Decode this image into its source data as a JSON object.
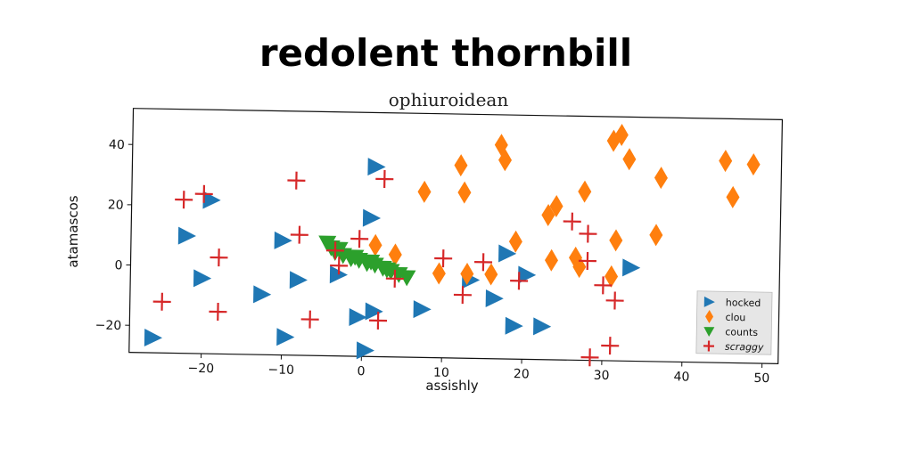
{
  "chart_data": {
    "type": "scatter",
    "title": "redolent thornbill",
    "subtitle": "ophiuroidean",
    "xlabel": "assishly",
    "ylabel": "atamascos",
    "xlim": [
      -29,
      52
    ],
    "ylim": [
      -29,
      52
    ],
    "xticks": [
      -20,
      -10,
      0,
      10,
      20,
      30,
      40,
      50
    ],
    "yticks": [
      -20,
      0,
      20,
      40
    ],
    "xtick_labels": [
      "−20",
      "−10",
      "0",
      "10",
      "20",
      "30",
      "40",
      "50"
    ],
    "ytick_labels": [
      "−20",
      "0",
      "20",
      "40"
    ],
    "grid": false,
    "legend_position": "lower-right",
    "series": [
      {
        "name": "hocked",
        "marker": "triangle-right",
        "color": "#1f77b4",
        "points": [
          [
            -26,
            -24
          ],
          [
            -22,
            10
          ],
          [
            -20,
            -4
          ],
          [
            -19,
            22
          ],
          [
            -12.5,
            -9
          ],
          [
            -10,
            9
          ],
          [
            -9.5,
            -23
          ],
          [
            -8,
            -4
          ],
          [
            -3,
            -2
          ],
          [
            -0.5,
            -16
          ],
          [
            0.5,
            -27
          ],
          [
            1,
            17
          ],
          [
            1.5,
            34
          ],
          [
            1.5,
            -14
          ],
          [
            7.5,
            -13
          ],
          [
            13.5,
            -3
          ],
          [
            16.5,
            -9
          ],
          [
            18,
            6
          ],
          [
            19,
            -18
          ],
          [
            20.5,
            -1
          ],
          [
            22.5,
            -18
          ],
          [
            33.5,
            2
          ]
        ]
      },
      {
        "name": "clou",
        "marker": "diamond",
        "color": "#ff7f0e",
        "points": [
          [
            1.5,
            8
          ],
          [
            4,
            5
          ],
          [
            7.5,
            26
          ],
          [
            9.5,
            -1
          ],
          [
            12,
            35
          ],
          [
            12.5,
            26
          ],
          [
            13,
            -1
          ],
          [
            16,
            -1
          ],
          [
            17,
            42
          ],
          [
            17.5,
            37
          ],
          [
            19,
            10
          ],
          [
            23,
            19
          ],
          [
            23.5,
            4
          ],
          [
            24,
            22
          ],
          [
            26.5,
            5
          ],
          [
            27,
            2
          ],
          [
            27.5,
            27
          ],
          [
            31,
            44
          ],
          [
            31.5,
            11
          ],
          [
            32,
            46
          ],
          [
            33,
            38
          ],
          [
            36.5,
            13
          ],
          [
            37,
            32
          ],
          [
            45,
            38
          ],
          [
            46,
            26
          ],
          [
            48.5,
            37
          ],
          [
            31,
            -1
          ]
        ]
      },
      {
        "name": "counts",
        "marker": "triangle-down",
        "color": "#2ca02c",
        "points": [
          [
            -4.5,
            8.5
          ],
          [
            -4,
            7
          ],
          [
            -3.5,
            5.5
          ],
          [
            -2.5,
            4.5
          ],
          [
            -1.5,
            3.5
          ],
          [
            -0.5,
            3
          ],
          [
            0.5,
            2
          ],
          [
            1.5,
            1.5
          ],
          [
            2.5,
            0.5
          ],
          [
            3.5,
            -0.5
          ],
          [
            4.5,
            -1.5
          ],
          [
            5.5,
            -2.5
          ],
          [
            -3,
            6.5
          ],
          [
            -1,
            4
          ],
          [
            1,
            2.5
          ],
          [
            3,
            0
          ]
        ]
      },
      {
        "name": "scraggy",
        "marker": "plus",
        "color": "#d62728",
        "points": [
          [
            -25,
            -12
          ],
          [
            -22.5,
            22
          ],
          [
            -20,
            24
          ],
          [
            -18,
            3
          ],
          [
            -18,
            -15
          ],
          [
            -8.5,
            29
          ],
          [
            -8,
            11
          ],
          [
            -6.5,
            -17
          ],
          [
            -3.5,
            6
          ],
          [
            -3,
            1
          ],
          [
            -0.5,
            10
          ],
          [
            2,
            -17
          ],
          [
            2.5,
            30
          ],
          [
            4,
            -3
          ],
          [
            10,
            4
          ],
          [
            12.5,
            -8
          ],
          [
            15,
            3
          ],
          [
            19.5,
            -3
          ],
          [
            26,
            17
          ],
          [
            28,
            13
          ],
          [
            28,
            4
          ],
          [
            28.5,
            -28
          ],
          [
            30,
            -4
          ],
          [
            31,
            -24
          ],
          [
            31.5,
            -9
          ]
        ]
      }
    ]
  }
}
